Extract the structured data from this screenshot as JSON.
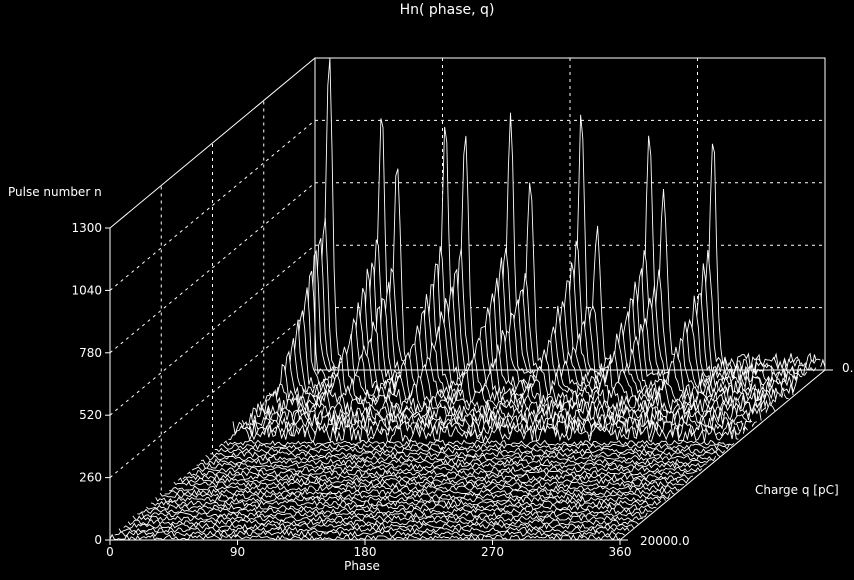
{
  "chart_data": {
    "type": "surface3d",
    "title": "Hn( phase, q)",
    "zlabel": "Pulse number n",
    "xlabel": "Phase",
    "ylabel": "Charge q  [pC]",
    "x_ticks": [
      "0",
      "90",
      "180",
      "270",
      "360"
    ],
    "z_ticks": [
      "0",
      "260",
      "520",
      "780",
      "1040",
      "1300"
    ],
    "y_tick_start": "0.",
    "y_tick_end": "20000.0",
    "xlim": [
      0,
      360
    ],
    "ylim": [
      0,
      20000
    ],
    "zlim": [
      0,
      1300
    ],
    "grid": true,
    "colors": {
      "background": "#000000",
      "lines": "#ffffff"
    },
    "peaks": [
      {
        "phase": 10,
        "n": 1280
      },
      {
        "phase": 47,
        "n": 1050
      },
      {
        "phase": 58,
        "n": 820
      },
      {
        "phase": 92,
        "n": 1000
      },
      {
        "phase": 106,
        "n": 950
      },
      {
        "phase": 138,
        "n": 1040
      },
      {
        "phase": 152,
        "n": 780
      },
      {
        "phase": 188,
        "n": 1020
      },
      {
        "phase": 199,
        "n": 560
      },
      {
        "phase": 236,
        "n": 960
      },
      {
        "phase": 246,
        "n": 740
      },
      {
        "phase": 281,
        "n": 940
      }
    ]
  }
}
